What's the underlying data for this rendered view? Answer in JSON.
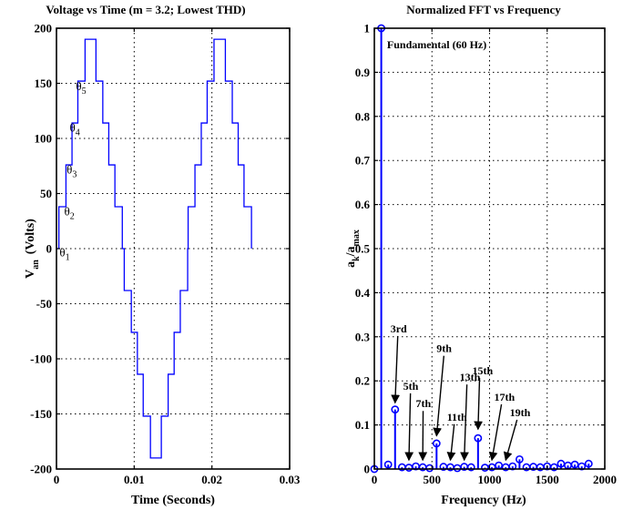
{
  "chart_data": [
    {
      "type": "line",
      "title": "Voltage vs Time (m = 3.2; Lowest THD)",
      "xlabel": "Time (Seconds)",
      "ylabel": "V_an (Volts)",
      "ylabel_main": "V",
      "ylabel_sub": "an",
      "ylabel_units": "(Volts)",
      "xlim": [
        0,
        0.03
      ],
      "ylim": [
        -200,
        200
      ],
      "xticks": [
        "0",
        "0.01",
        "0.02",
        "0.03"
      ],
      "yticks": [
        "200",
        "150",
        "100",
        "50",
        "0",
        "-50",
        "-100",
        "-150",
        "-200"
      ],
      "grid": true,
      "color": "#0000ff",
      "series": [
        {
          "x": [
            0.0,
            0.00031,
            0.00031,
            0.00122,
            0.00122,
            0.002,
            0.002,
            0.00275,
            0.00275,
            0.00368,
            0.00368,
            0.00508,
            0.00508,
            0.00596,
            0.00596,
            0.00673,
            0.00673,
            0.00752,
            0.00752,
            0.00847,
            0.00847,
            0.00872,
            0.00872,
            0.00963,
            0.00963,
            0.01041,
            0.01041,
            0.01116,
            0.01116,
            0.01209,
            0.01209,
            0.01349,
            0.01349,
            0.01437,
            0.01437,
            0.01514,
            0.01514,
            0.01593,
            0.01593,
            0.01688,
            0.01688,
            0.01694,
            0.01694,
            0.01782,
            0.01782,
            0.01863,
            0.01863,
            0.01939,
            0.01939,
            0.02027,
            0.02027,
            0.02173,
            0.02173,
            0.02262,
            0.02262,
            0.02338,
            0.02338,
            0.02413,
            0.02413,
            0.02509,
            0.02509
          ],
          "y": [
            0,
            0,
            38,
            38,
            76,
            76,
            114,
            114,
            152,
            152,
            190,
            190,
            152,
            152,
            114,
            114,
            76,
            76,
            38,
            38,
            0,
            0,
            -38,
            -38,
            -76,
            -76,
            -114,
            -114,
            -152,
            -152,
            -190,
            -190,
            -152,
            -152,
            -114,
            -114,
            -76,
            -76,
            -38,
            -38,
            0,
            0,
            38,
            38,
            76,
            76,
            114,
            114,
            152,
            152,
            190,
            190,
            152,
            152,
            114,
            114,
            76,
            76,
            38,
            38,
            0
          ]
        }
      ],
      "annotations": [
        {
          "main": "θ",
          "sub": "1",
          "x": 0.0004,
          "y": -7
        },
        {
          "main": "θ",
          "sub": "2",
          "x": 0.001,
          "y": 30
        },
        {
          "main": "θ",
          "sub": "3",
          "x": 0.0013,
          "y": 68
        },
        {
          "main": "θ",
          "sub": "4",
          "x": 0.0017,
          "y": 106
        },
        {
          "main": "θ",
          "sub": "5",
          "x": 0.0025,
          "y": 144
        }
      ]
    },
    {
      "type": "stem",
      "title": "Normalized FFT vs Frequency",
      "xlabel": "Frequency (Hz)",
      "ylabel": "a_k/a_max",
      "ylabel_main": "a",
      "ylabel_k": "k",
      "ylabel_slash": "/a",
      "ylabel_max": "max",
      "xlim": [
        0,
        2000
      ],
      "ylim": [
        0,
        1
      ],
      "xticks": [
        "0",
        "500",
        "1000",
        "1500",
        "2000"
      ],
      "yticks": [
        "1",
        "0.9",
        "0.8",
        "0.7",
        "0.6",
        "0.5",
        "0.4",
        "0.3",
        "0.2",
        "0.1",
        "0"
      ],
      "grid": true,
      "color": "#0000ff",
      "x": [
        0,
        60,
        120,
        180,
        240,
        300,
        360,
        420,
        480,
        540,
        600,
        660,
        720,
        780,
        840,
        900,
        960,
        1020,
        1080,
        1140,
        1200,
        1260,
        1320,
        1380,
        1440,
        1500,
        1560,
        1620,
        1680,
        1740,
        1800,
        1860
      ],
      "y": [
        0,
        1.0,
        0.01,
        0.135,
        0.004,
        0.003,
        0.006,
        0.004,
        0.002,
        0.058,
        0.005,
        0.004,
        0.002,
        0.005,
        0.004,
        0.07,
        0.003,
        0.004,
        0.008,
        0.004,
        0.006,
        0.022,
        0.004,
        0.005,
        0.004,
        0.006,
        0.004,
        0.012,
        0.008,
        0.01,
        0.006,
        0.012
      ],
      "annotations": [
        {
          "text": "Fundamental (60 Hz)",
          "x": 110,
          "y": 0.955
        },
        {
          "text": "3rd",
          "tx": 140,
          "ty": 0.31,
          "ax": 180,
          "ay": 0.15
        },
        {
          "text": "5th",
          "tx": 250,
          "ty": 0.18,
          "ax": 300,
          "ay": 0.02
        },
        {
          "text": "7th",
          "tx": 360,
          "ty": 0.14,
          "ax": 420,
          "ay": 0.02
        },
        {
          "text": "9th",
          "tx": 540,
          "ty": 0.265,
          "ax": 540,
          "ay": 0.075
        },
        {
          "text": "11th",
          "tx": 630,
          "ty": 0.11,
          "ax": 660,
          "ay": 0.02
        },
        {
          "text": "13th",
          "tx": 740,
          "ty": 0.2,
          "ax": 780,
          "ay": 0.02
        },
        {
          "text": "15th",
          "tx": 850,
          "ty": 0.215,
          "ax": 900,
          "ay": 0.09
        },
        {
          "text": "17th",
          "tx": 1040,
          "ty": 0.155,
          "ax": 1020,
          "ay": 0.02
        },
        {
          "text": "19th",
          "tx": 1175,
          "ty": 0.12,
          "ax": 1140,
          "ay": 0.02
        }
      ]
    }
  ]
}
